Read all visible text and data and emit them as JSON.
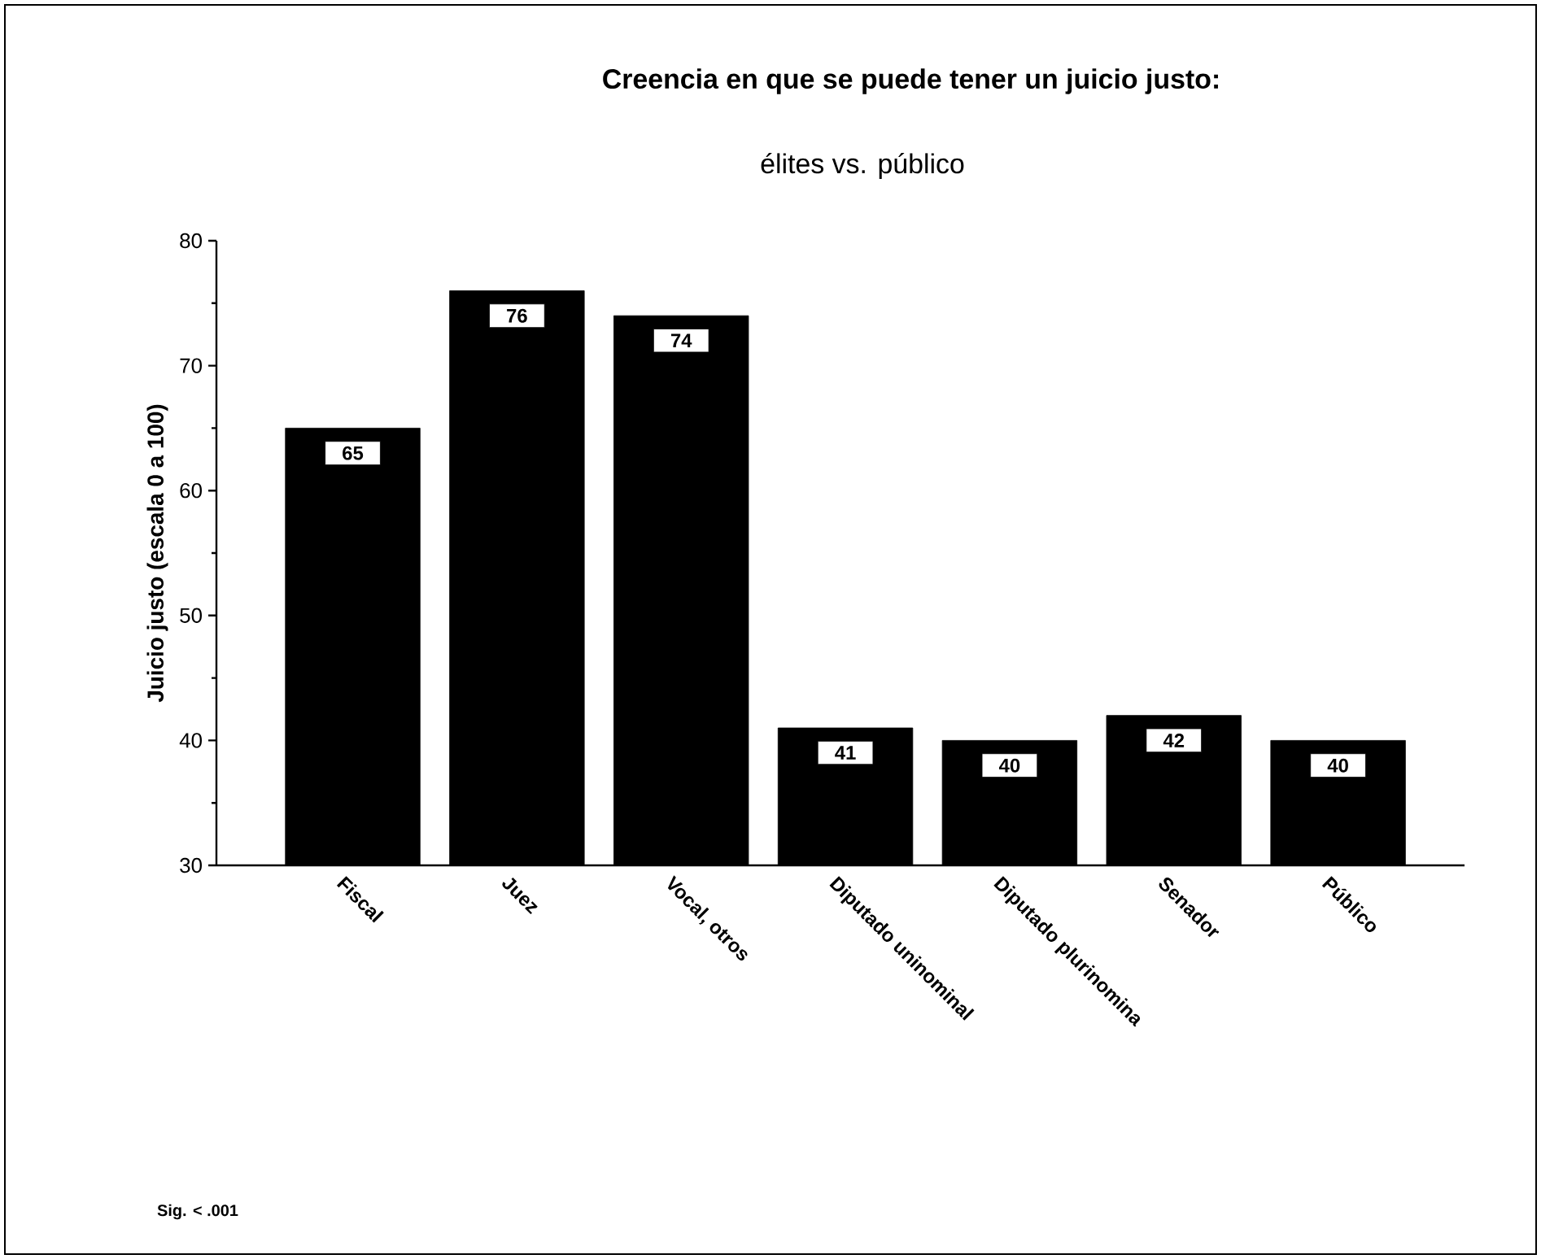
{
  "chart_data": {
    "type": "bar",
    "title": "Creencia en que se puede tener un juicio justo:",
    "subtitle": "élites vs. público",
    "ylabel": "Juicio justo (escala 0 a 100)",
    "categories": [
      "Fiscal",
      "Juez",
      "Vocal, otros",
      "Diputado uninominal",
      "Diputado plurinomina",
      "Senador",
      "Público"
    ],
    "values": [
      65,
      76,
      74,
      41,
      40,
      42,
      40
    ],
    "color": "#000000",
    "ylim": [
      30,
      80
    ],
    "yticks": [
      30,
      40,
      50,
      60,
      70,
      80
    ],
    "data_labels": true,
    "annotations": [
      "Sig. < .001"
    ]
  }
}
